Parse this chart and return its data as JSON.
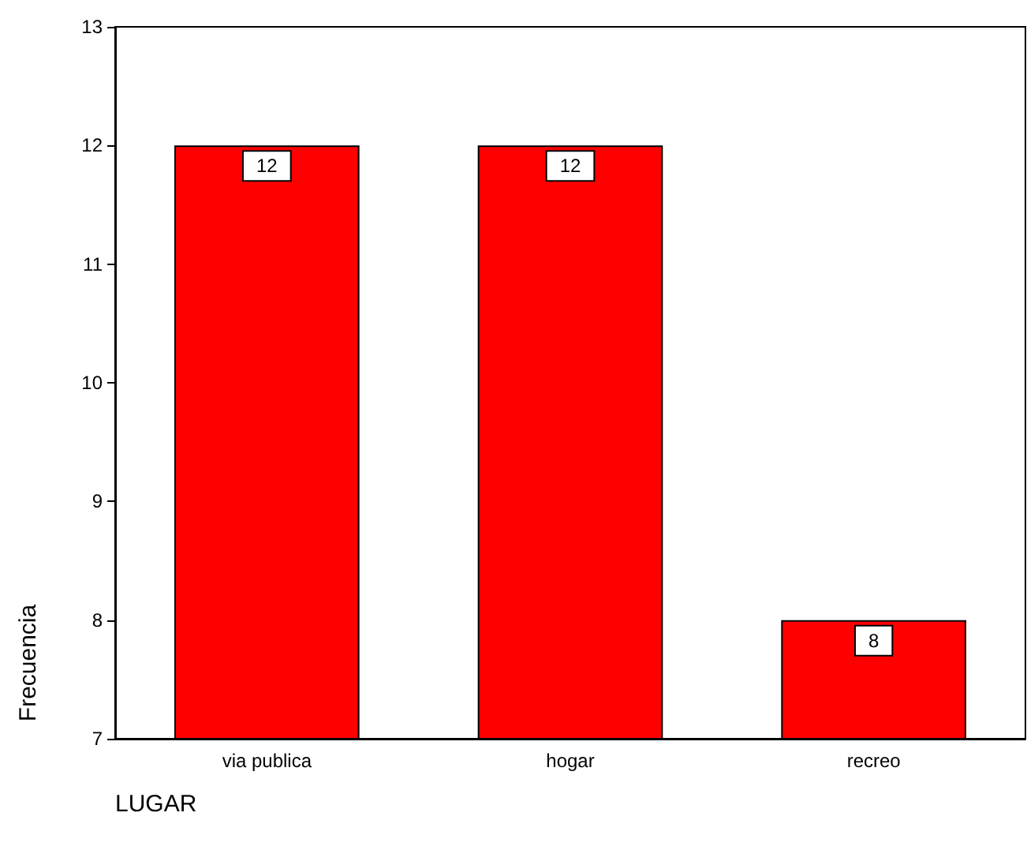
{
  "chart_data": {
    "type": "bar",
    "xlabel": "LUGAR",
    "ylabel": "Frecuencia",
    "categories": [
      "via publica",
      "hogar",
      "recreo"
    ],
    "values": [
      12,
      12,
      8
    ],
    "color": "#ff0000",
    "ylim": [
      7,
      13
    ],
    "yticks": [
      7,
      8,
      9,
      10,
      11,
      12,
      13
    ],
    "grid": false,
    "data_labels": true
  }
}
